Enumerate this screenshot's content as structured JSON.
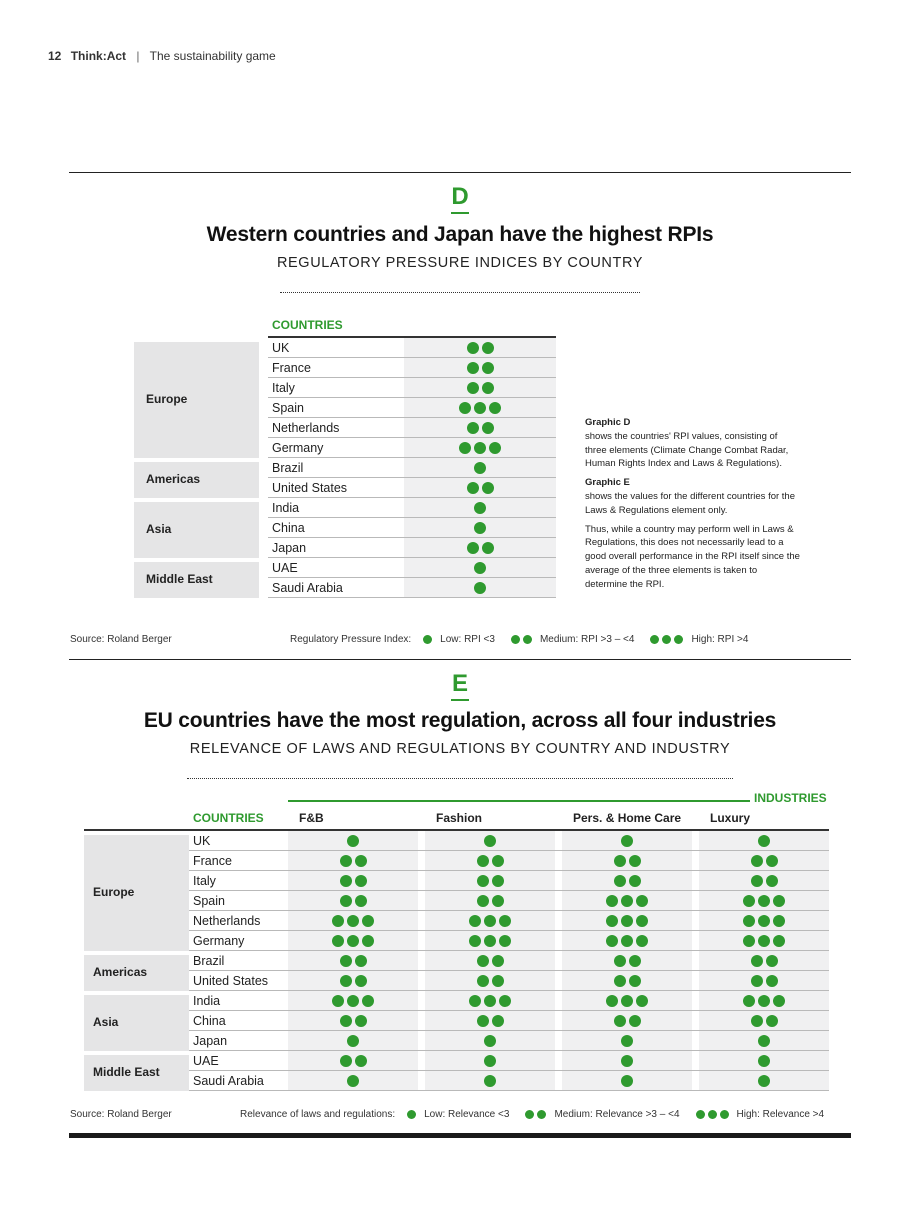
{
  "header": {
    "page_number": "12",
    "brand": "Think:Act",
    "separator": "|",
    "publication": "The sustainability game"
  },
  "colors": {
    "accent_green": "#2f9a2f",
    "region_bg": "#e5e5e6",
    "cell_bg": "#f0f0f1"
  },
  "graphic_d": {
    "letter": "D",
    "title": "Western countries and Japan have the highest RPIs",
    "subtitle": "REGULATORY PRESSURE INDICES BY COUNTRY",
    "column_header": "COUNTRIES",
    "regions": [
      {
        "name": "Europe",
        "rows": [
          {
            "country": "UK",
            "level": 2
          },
          {
            "country": "France",
            "level": 2
          },
          {
            "country": "Italy",
            "level": 2
          },
          {
            "country": "Spain",
            "level": 3
          },
          {
            "country": "Netherlands",
            "level": 2
          },
          {
            "country": "Germany",
            "level": 3
          }
        ]
      },
      {
        "name": "Americas",
        "rows": [
          {
            "country": "Brazil",
            "level": 1
          },
          {
            "country": "United States",
            "level": 2
          }
        ]
      },
      {
        "name": "Asia",
        "rows": [
          {
            "country": "India",
            "level": 1
          },
          {
            "country": "China",
            "level": 1
          },
          {
            "country": "Japan",
            "level": 2
          }
        ]
      },
      {
        "name": "Middle East",
        "rows": [
          {
            "country": "UAE",
            "level": 1
          },
          {
            "country": "Saudi Arabia",
            "level": 1
          }
        ]
      }
    ],
    "notes": {
      "d_heading": "Graphic D",
      "d_text": "shows the countries' RPI values, consisting of three elements (Climate Change Combat Radar, Human Rights Index and Laws & Regulations).",
      "e_heading": "Graphic E",
      "e_text": "shows the values for the different countries for the Laws & Regulations element only.",
      "extra": "Thus, while a country may perform well in Laws & Regulations, this does not necessarily lead to a good overall performance in the RPI itself since the average of the three elements is taken to determine the RPI."
    },
    "source": "Source: Roland Berger",
    "legend": {
      "lead": "Regulatory Pressure Index:",
      "low": "Low: RPI <3",
      "medium": "Medium: RPI >3 – <4",
      "high": "High: RPI >4"
    }
  },
  "graphic_e": {
    "letter": "E",
    "title": "EU countries have the most regulation, across all four industries",
    "subtitle": "RELEVANCE OF LAWS AND REGULATIONS BY COUNTRY AND INDUSTRY",
    "column_header": "COUNTRIES",
    "industries_label": "INDUSTRIES",
    "industries": [
      "F&B",
      "Fashion",
      "Pers. & Home Care",
      "Luxury"
    ],
    "regions": [
      {
        "name": "Europe",
        "rows": [
          {
            "country": "UK",
            "levels": [
              1,
              1,
              1,
              1
            ]
          },
          {
            "country": "France",
            "levels": [
              2,
              2,
              2,
              2
            ]
          },
          {
            "country": "Italy",
            "levels": [
              2,
              2,
              2,
              2
            ]
          },
          {
            "country": "Spain",
            "levels": [
              2,
              2,
              3,
              3
            ]
          },
          {
            "country": "Netherlands",
            "levels": [
              3,
              3,
              3,
              3
            ]
          },
          {
            "country": "Germany",
            "levels": [
              3,
              3,
              3,
              3
            ]
          }
        ]
      },
      {
        "name": "Americas",
        "rows": [
          {
            "country": "Brazil",
            "levels": [
              2,
              2,
              2,
              2
            ]
          },
          {
            "country": "United States",
            "levels": [
              2,
              2,
              2,
              2
            ]
          }
        ]
      },
      {
        "name": "Asia",
        "rows": [
          {
            "country": "India",
            "levels": [
              3,
              3,
              3,
              3
            ]
          },
          {
            "country": "China",
            "levels": [
              2,
              2,
              2,
              2
            ]
          },
          {
            "country": "Japan",
            "levels": [
              1,
              1,
              1,
              1
            ]
          }
        ]
      },
      {
        "name": "Middle East",
        "rows": [
          {
            "country": "UAE",
            "levels": [
              2,
              1,
              1,
              1
            ]
          },
          {
            "country": "Saudi Arabia",
            "levels": [
              1,
              1,
              1,
              1
            ]
          }
        ]
      }
    ],
    "source": "Source: Roland Berger",
    "legend": {
      "lead": "Relevance of laws and regulations:",
      "low": "Low: Relevance <3",
      "medium": "Medium: Relevance >3 – <4",
      "high": "High: Relevance >4"
    }
  }
}
